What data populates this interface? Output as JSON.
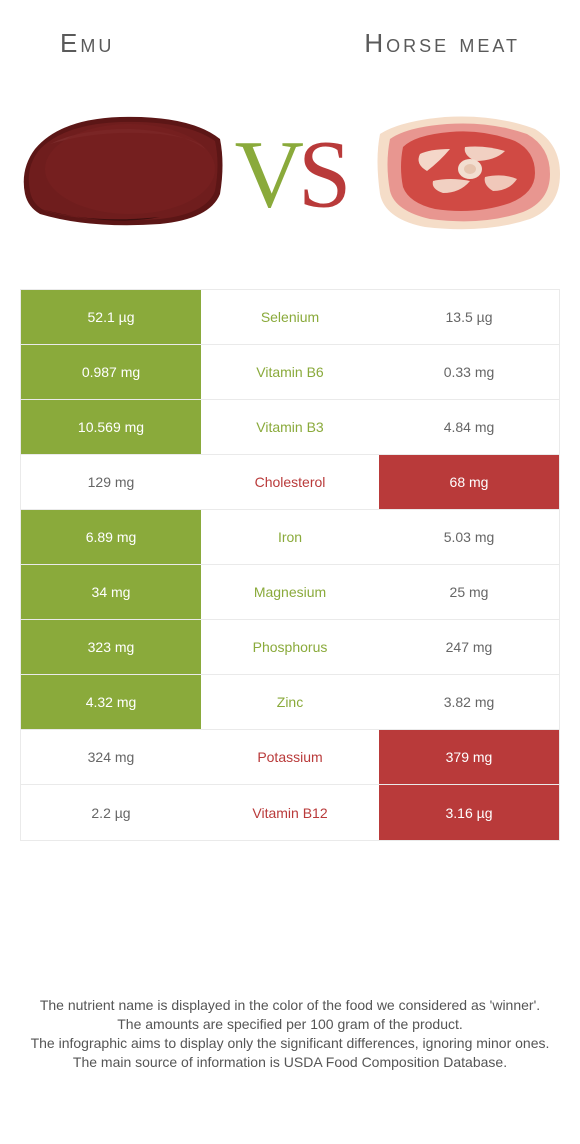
{
  "colors": {
    "emu_win": "#8aaa3b",
    "horse_win": "#b93a3a",
    "emu_fill": "#6a1a1a",
    "horse_fill_light": "#f0b6b0",
    "horse_fill_red": "#d04a44",
    "horse_fill_fat": "#f7e7d8",
    "row_border": "#eaeaea",
    "text_dark": "#5a5a5a",
    "text_mid": "#666666"
  },
  "header": {
    "left_title": "Emu",
    "right_title": "Horse meat",
    "vs_v": "V",
    "vs_s": "S"
  },
  "rows": [
    {
      "nutrient": "Selenium",
      "left": "52.1 µg",
      "right": "13.5 µg",
      "winner": "emu"
    },
    {
      "nutrient": "Vitamin B6",
      "left": "0.987 mg",
      "right": "0.33 mg",
      "winner": "emu"
    },
    {
      "nutrient": "Vitamin B3",
      "left": "10.569 mg",
      "right": "4.84 mg",
      "winner": "emu"
    },
    {
      "nutrient": "Cholesterol",
      "left": "129 mg",
      "right": "68 mg",
      "winner": "horse"
    },
    {
      "nutrient": "Iron",
      "left": "6.89 mg",
      "right": "5.03 mg",
      "winner": "emu"
    },
    {
      "nutrient": "Magnesium",
      "left": "34 mg",
      "right": "25 mg",
      "winner": "emu"
    },
    {
      "nutrient": "Phosphorus",
      "left": "323 mg",
      "right": "247 mg",
      "winner": "emu"
    },
    {
      "nutrient": "Zinc",
      "left": "4.32 mg",
      "right": "3.82 mg",
      "winner": "emu"
    },
    {
      "nutrient": "Potassium",
      "left": "324 mg",
      "right": "379 mg",
      "winner": "horse"
    },
    {
      "nutrient": "Vitamin B12",
      "left": "2.2 µg",
      "right": "3.16 µg",
      "winner": "horse"
    }
  ],
  "footer": {
    "line1": "The nutrient name is displayed in the color of the food we considered as 'winner'.",
    "line2": "The amounts are specified per 100 gram of the product.",
    "line3": "The infographic aims to display only the significant differences, ignoring minor ones.",
    "line4": "The main source of information is USDA Food Composition Database."
  }
}
